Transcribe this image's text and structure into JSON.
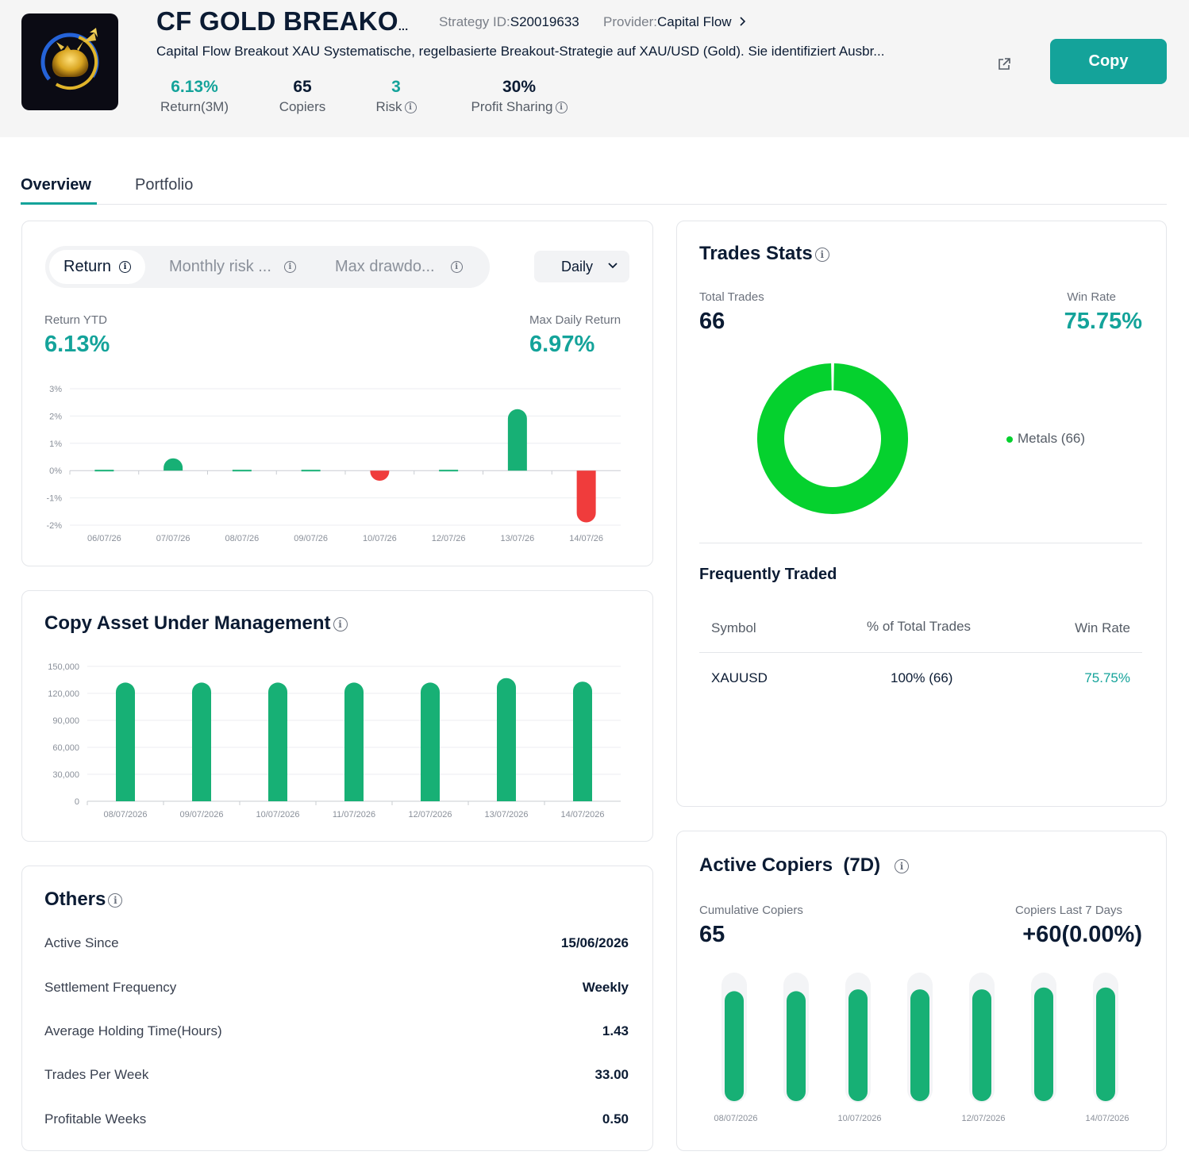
{
  "header": {
    "title": "CF GOLD BREAKO",
    "title_ellipsis": "...",
    "strategy_id_label": "Strategy ID:",
    "strategy_id": "S20019633",
    "provider_label": "Provider:",
    "provider": "Capital Flow",
    "description": "Capital Flow Breakout XAU Systematische, regelbasierte Breakout-Strategie auf XAU/USD (Gold). Sie identifiziert Ausbr...",
    "copy_label": "Copy",
    "stats": [
      {
        "value": "6.13%",
        "label": "Return(3M)"
      },
      {
        "value": "65",
        "label": "Copiers"
      },
      {
        "value": "3",
        "label": "Risk"
      },
      {
        "value": "30%",
        "label": "Profit Sharing"
      }
    ]
  },
  "tabs": [
    "Overview",
    "Portfolio"
  ],
  "return_card": {
    "segments": [
      "Return",
      "Monthly risk ...",
      "Max drawdo..."
    ],
    "period": "Daily",
    "ytd_label": "Return YTD",
    "ytd_value": "6.13%",
    "max_label": "Max Daily Return",
    "max_value": "6.97%"
  },
  "aum_card": {
    "title": "Copy Asset Under Management"
  },
  "trades_card": {
    "title": "Trades Stats",
    "total_label": "Total Trades",
    "total_value": "66",
    "winrate_label": "Win Rate",
    "winrate_value": "75.75%",
    "legend": "Metals (66)",
    "freq_title": "Frequently Traded",
    "columns": [
      "Symbol",
      "% of Total Trades",
      "Win Rate"
    ],
    "rows": [
      {
        "symbol": "XAUUSD",
        "pct": "100% (66)",
        "win": "75.75%"
      }
    ]
  },
  "others_card": {
    "title": "Others",
    "rows": [
      {
        "label": "Active Since",
        "value": "15/06/2026"
      },
      {
        "label": "Settlement Frequency",
        "value": "Weekly"
      },
      {
        "label": "Average Holding Time(Hours)",
        "value": "1.43"
      },
      {
        "label": "Trades Per Week",
        "value": "33.00"
      },
      {
        "label": "Profitable Weeks",
        "value": "0.50"
      }
    ]
  },
  "copiers_card": {
    "title": "Active Copiers  (7D)",
    "cum_label": "Cumulative Copiers",
    "cum_value": "65",
    "last_label": "Copiers Last 7 Days",
    "last_value": "+60(0.00%)"
  },
  "colors": {
    "accent": "#14a39a",
    "bar_green": "#17b075",
    "bar_red": "#f03c3c",
    "donut": "#05d12e"
  },
  "chart_data": [
    {
      "type": "bar",
      "categories": [
        "06/07/26",
        "07/07/26",
        "08/07/26",
        "09/07/26",
        "10/07/26",
        "12/07/26",
        "13/07/26",
        "14/07/26"
      ],
      "values": [
        0.0,
        0.2,
        0.0,
        0.0,
        -0.05,
        0.0,
        2.25,
        -1.9
      ],
      "yticks": [
        "3%",
        "2%",
        "1%",
        "0%",
        "-1%",
        "-2%"
      ],
      "ylim": [
        -2,
        3
      ]
    },
    {
      "type": "bar",
      "categories": [
        "08/07/2026",
        "09/07/2026",
        "10/07/2026",
        "11/07/2026",
        "12/07/2026",
        "13/07/2026",
        "14/07/2026"
      ],
      "values": [
        132000,
        132000,
        132000,
        132000,
        132000,
        137000,
        133000
      ],
      "yticks": [
        "150,000",
        "120,000",
        "90,000",
        "60,000",
        "30,000",
        "0"
      ],
      "ylim": [
        0,
        150000
      ]
    },
    {
      "type": "pie",
      "categories": [
        "Metals"
      ],
      "values": [
        66
      ]
    },
    {
      "type": "bar",
      "categories": [
        "08/07/2026",
        "09/07/2026",
        "10/07/2026",
        "11/07/2026",
        "12/07/2026",
        "13/07/2026",
        "14/07/2026"
      ],
      "values": [
        60,
        60,
        61,
        61,
        61,
        62,
        62
      ],
      "xtick_labels": [
        "08/07/2026",
        "10/07/2026",
        "12/07/2026",
        "14/07/2026"
      ],
      "ylim": [
        0,
        70
      ]
    }
  ]
}
